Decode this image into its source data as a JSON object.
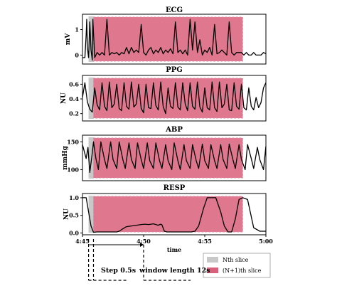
{
  "chart_data": {
    "type": "line",
    "x_range": [
      285,
      300
    ],
    "x_ticks": [
      {
        "t": 285,
        "label": "4:45"
      },
      {
        "t": 290,
        "label": "4:50"
      },
      {
        "t": 295,
        "label": "4:55"
      },
      {
        "t": 300,
        "label": "5:00"
      }
    ],
    "xlabel": "time",
    "slices": [
      {
        "name": "Nth slice",
        "start": 285.5,
        "end": 285.9,
        "color": "#c8c8c8"
      },
      {
        "name": "(N+1)th slice",
        "start": 285.9,
        "end": 298.1,
        "color": "#d9607a"
      }
    ],
    "annotations": {
      "step": "Step 0.5s",
      "window": "window length 12s"
    },
    "panels": [
      {
        "title": "ECG",
        "ylabel": "mV",
        "ylim": [
          -0.35,
          1.6
        ],
        "yticks": [
          0,
          1
        ],
        "series": [
          {
            "t": [
              285,
              285.2,
              285.3,
              285.35,
              285.4,
              285.5,
              285.6,
              285.7,
              285.8,
              285.85,
              286,
              286.2,
              286.4,
              286.6,
              286.8,
              287,
              287.2,
              287.4,
              287.6,
              287.8,
              288,
              288.2,
              288.4,
              288.6,
              288.8,
              289,
              289.2,
              289.4,
              289.6,
              289.8,
              290,
              290.2,
              290.4,
              290.6,
              290.8,
              291,
              291.2,
              291.4,
              291.6,
              291.8,
              292,
              292.2,
              292.4,
              292.6,
              292.8,
              293,
              293.2,
              293.4,
              293.6,
              293.8,
              294,
              294.2,
              294.4,
              294.6,
              294.8,
              295,
              295.2,
              295.4,
              295.6,
              295.8,
              296,
              296.2,
              296.4,
              296.6,
              296.8,
              297,
              297.2,
              297.4,
              297.6,
              297.8,
              298,
              298.2,
              298.4,
              298.6,
              298.8,
              299,
              299.2,
              299.4,
              299.6,
              299.8,
              300
            ],
            "v": [
              -0.1,
              -0.1,
              0.8,
              1.4,
              0.3,
              -0.1,
              1.3,
              0.2,
              -0.2,
              1.4,
              -0.1,
              0.1,
              0.0,
              0.1,
              0.0,
              1.4,
              0.0,
              0.1,
              0.05,
              0.1,
              0.0,
              0.1,
              0.05,
              0.3,
              0.05,
              0.3,
              0.1,
              0.2,
              0.1,
              1.2,
              0.1,
              0.0,
              0.2,
              0.3,
              0.05,
              0.2,
              0.1,
              0.3,
              0.05,
              0.2,
              0.1,
              0.25,
              0.05,
              1.3,
              0.1,
              0.2,
              0.05,
              0.2,
              0.0,
              1.4,
              0.2,
              1.3,
              0.1,
              0.6,
              0.0,
              0.2,
              0.1,
              0.3,
              0.0,
              1.2,
              0.05,
              0.1,
              0.2,
              0.1,
              0.0,
              1.3,
              0.1,
              0.0,
              0.1,
              0.1,
              0.1,
              0.0,
              0.1,
              0.0,
              0.0,
              0.1,
              0.0,
              0.0,
              0.0,
              0.1,
              0.05
            ]
          }
        ]
      },
      {
        "title": "PPG",
        "ylabel": "NU",
        "ylim": [
          0.1,
          0.72
        ],
        "yticks": [
          0.2,
          0.4,
          0.6
        ],
        "series": [
          {
            "t": [
              285,
              285.2,
              285.4,
              285.6,
              285.8,
              286,
              286.2,
              286.4,
              286.6,
              286.8,
              287,
              287.2,
              287.4,
              287.6,
              287.8,
              288,
              288.2,
              288.4,
              288.6,
              288.8,
              289,
              289.2,
              289.4,
              289.6,
              289.8,
              290,
              290.2,
              290.4,
              290.6,
              290.8,
              291,
              291.2,
              291.4,
              291.6,
              291.8,
              292,
              292.2,
              292.4,
              292.6,
              292.8,
              293,
              293.2,
              293.4,
              293.6,
              293.8,
              294,
              294.2,
              294.4,
              294.6,
              294.8,
              295,
              295.2,
              295.4,
              295.6,
              295.8,
              296,
              296.2,
              296.4,
              296.6,
              296.8,
              297,
              297.2,
              297.4,
              297.6,
              297.8,
              298,
              298.2,
              298.4,
              298.6,
              298.8,
              299,
              299.2,
              299.4,
              299.6,
              299.8,
              300
            ],
            "v": [
              0.42,
              0.62,
              0.36,
              0.26,
              0.22,
              0.55,
              0.32,
              0.25,
              0.62,
              0.3,
              0.24,
              0.63,
              0.28,
              0.33,
              0.6,
              0.27,
              0.24,
              0.62,
              0.3,
              0.26,
              0.63,
              0.29,
              0.33,
              0.6,
              0.27,
              0.21,
              0.6,
              0.28,
              0.27,
              0.62,
              0.31,
              0.25,
              0.63,
              0.3,
              0.2,
              0.55,
              0.3,
              0.27,
              0.62,
              0.29,
              0.25,
              0.62,
              0.33,
              0.24,
              0.62,
              0.3,
              0.26,
              0.63,
              0.29,
              0.22,
              0.55,
              0.28,
              0.25,
              0.63,
              0.28,
              0.23,
              0.63,
              0.28,
              0.33,
              0.6,
              0.25,
              0.24,
              0.62,
              0.3,
              0.26,
              0.6,
              0.28,
              0.25,
              0.55,
              0.3,
              0.25,
              0.42,
              0.28,
              0.35,
              0.55,
              0.62
            ]
          }
        ]
      },
      {
        "title": "ABP",
        "ylabel": "mmHg",
        "ylim": [
          80,
          162
        ],
        "yticks": [
          100,
          150
        ],
        "series": [
          {
            "t": [
              285,
              285.3,
              285.45,
              285.6,
              285.8,
              285.9,
              286.1,
              286.3,
              286.5,
              286.8,
              287,
              287.3,
              287.5,
              287.8,
              288,
              288.3,
              288.5,
              288.8,
              289,
              289.3,
              289.5,
              289.8,
              290,
              290.3,
              290.5,
              290.8,
              291,
              291.3,
              291.5,
              291.8,
              292,
              292.3,
              292.5,
              292.8,
              293,
              293.3,
              293.5,
              293.8,
              294,
              294.3,
              294.5,
              294.8,
              295,
              295.3,
              295.5,
              295.8,
              296,
              296.3,
              296.5,
              296.8,
              297,
              297.3,
              297.5,
              297.8,
              298,
              298.3,
              298.5,
              298.8,
              299,
              299.3,
              299.5,
              299.8,
              300
            ],
            "v": [
              145,
              120,
              140,
              95,
              130,
              150,
              120,
              100,
              150,
              118,
              102,
              150,
              118,
              102,
              150,
              118,
              102,
              148,
              118,
              102,
              148,
              118,
              102,
              148,
              116,
              102,
              148,
              116,
              102,
              145,
              116,
              100,
              148,
              116,
              100,
              145,
              116,
              102,
              145,
              116,
              102,
              146,
              116,
              102,
              145,
              116,
              102,
              145,
              118,
              102,
              146,
              118,
              102,
              145,
              118,
              100,
              145,
              120,
              102,
              140,
              118,
              100,
              142
            ]
          }
        ]
      },
      {
        "title": "RESP",
        "ylabel": "NU",
        "ylim": [
          -0.05,
          1.12
        ],
        "yticks": [
          0.0,
          0.5,
          1.0
        ],
        "series": [
          {
            "t": [
              285,
              285.3,
              285.5,
              285.7,
              285.9,
              286.2,
              286.6,
              287,
              287.4,
              287.8,
              288,
              288.3,
              288.6,
              289,
              289.4,
              289.8,
              290.1,
              290.4,
              290.8,
              291,
              291.2,
              291.4,
              291.5,
              291.7,
              291.9,
              292.2,
              292.5,
              292.8,
              293.1,
              293.5,
              293.9,
              294.2,
              294.5,
              294.9,
              295.2,
              295.5,
              295.9,
              296.3,
              296.6,
              296.9,
              297.2,
              297.5,
              297.8,
              298.1,
              298.5,
              299,
              299.5,
              300
            ],
            "v": [
              1.0,
              1.0,
              0.6,
              0.2,
              0.02,
              0.03,
              0.03,
              0.03,
              0.03,
              0.03,
              0.05,
              0.12,
              0.18,
              0.2,
              0.22,
              0.24,
              0.25,
              0.24,
              0.26,
              0.24,
              0.22,
              0.25,
              0.23,
              0.05,
              0.03,
              0.03,
              0.03,
              0.03,
              0.03,
              0.03,
              0.03,
              0.05,
              0.2,
              0.7,
              1.0,
              1.0,
              1.0,
              0.6,
              0.2,
              0.03,
              0.03,
              0.4,
              0.95,
              1.0,
              0.95,
              0.15,
              0.05,
              0.05
            ]
          }
        ]
      }
    ],
    "legend": {
      "position": "bottom-right"
    }
  }
}
